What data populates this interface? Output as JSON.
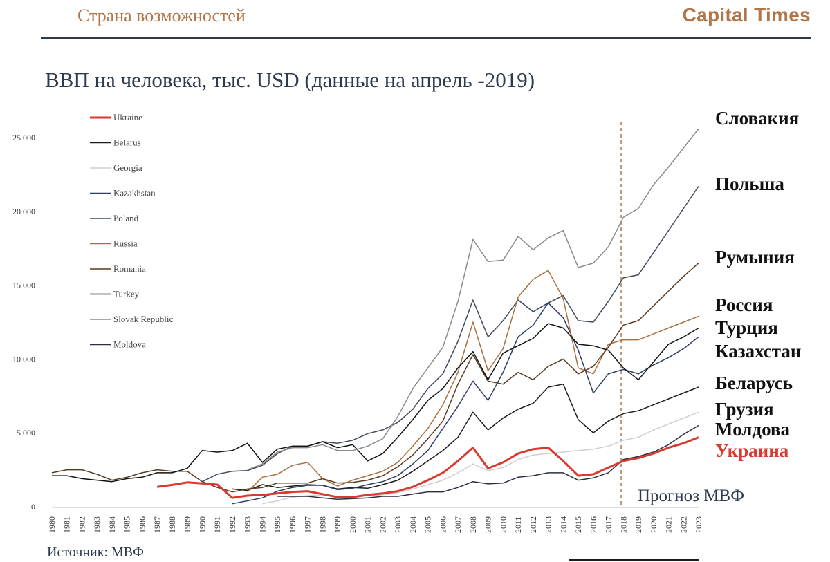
{
  "header": {
    "left": "Страна возможностей",
    "right": "Capital Times"
  },
  "chart_data": {
    "type": "line",
    "title": "ВВП на человека, тыс. USD (данные на апрель -2019)",
    "source": "Источник: МВФ",
    "forecast_label": "Прогноз МВФ",
    "forecast_start": 2018,
    "x": [
      1980,
      1981,
      1982,
      1983,
      1984,
      1985,
      1986,
      1987,
      1988,
      1989,
      1990,
      1991,
      1992,
      1993,
      1994,
      1995,
      1996,
      1997,
      1998,
      1999,
      2000,
      2001,
      2002,
      2003,
      2004,
      2005,
      2006,
      2007,
      2008,
      2009,
      2010,
      2011,
      2012,
      2013,
      2014,
      2015,
      2016,
      2017,
      2018,
      2019,
      2020,
      2021,
      2022,
      2023
    ],
    "ylim": [
      0,
      25000
    ],
    "yticks": [
      0,
      5000,
      10000,
      15000,
      20000,
      25000
    ],
    "ytick_labels": [
      "0",
      "5 000",
      "10 000",
      "15 000",
      "20 000",
      "25 000"
    ],
    "grid": false,
    "legend_position": "top-left",
    "series": [
      {
        "name": "Ukraine",
        "ru_label": "Украина",
        "color": "#d93a2f",
        "width": 3,
        "values": [
          null,
          null,
          null,
          null,
          null,
          null,
          null,
          1350,
          1480,
          1650,
          1580,
          1500,
          600,
          750,
          800,
          900,
          1000,
          1050,
          850,
          650,
          650,
          800,
          900,
          1050,
          1350,
          1800,
          2300,
          3100,
          4000,
          2600,
          3000,
          3600,
          3900,
          4000,
          3100,
          2100,
          2200,
          2650,
          3100,
          3300,
          3600,
          4000,
          4300,
          4700
        ]
      },
      {
        "name": "Belarus",
        "ru_label": "Беларусь",
        "color": "#1b1b1b",
        "width": 1.5,
        "values": [
          null,
          null,
          null,
          null,
          null,
          null,
          null,
          null,
          null,
          null,
          null,
          null,
          1200,
          1100,
          1500,
          1300,
          1400,
          1500,
          1450,
          1200,
          1300,
          1250,
          1500,
          1800,
          2400,
          3100,
          3800,
          4700,
          6400,
          5200,
          6000,
          6600,
          7000,
          8100,
          8300,
          5900,
          5000,
          5800,
          6300,
          6500,
          6900,
          7300,
          7700,
          8100
        ]
      },
      {
        "name": "Georgia",
        "ru_label": "Грузия",
        "color": "#cfcfcf",
        "width": 1.5,
        "values": [
          null,
          null,
          null,
          null,
          null,
          null,
          null,
          null,
          null,
          null,
          null,
          null,
          null,
          null,
          200,
          400,
          650,
          750,
          800,
          650,
          700,
          750,
          800,
          950,
          1200,
          1500,
          1800,
          2300,
          2900,
          2450,
          2650,
          3200,
          3500,
          3600,
          3700,
          3800,
          3900,
          4100,
          4500,
          4700,
          5200,
          5600,
          6000,
          6400
        ]
      },
      {
        "name": "Kazakhstan",
        "ru_label": "Казахстан",
        "color": "#2c3e66",
        "width": 1.5,
        "values": [
          null,
          null,
          null,
          null,
          null,
          null,
          null,
          null,
          null,
          null,
          null,
          null,
          200,
          400,
          600,
          1050,
          1300,
          1450,
          1450,
          1150,
          1250,
          1500,
          1700,
          2100,
          2900,
          3800,
          5300,
          6800,
          8500,
          7200,
          9100,
          11500,
          12300,
          13800,
          12800,
          10600,
          7700,
          9000,
          9300,
          9000,
          9600,
          10100,
          10700,
          11500
        ]
      },
      {
        "name": "Poland",
        "ru_label": "Польша",
        "color": "#3f4a5c",
        "width": 1.5,
        "values": [
          null,
          null,
          null,
          null,
          null,
          null,
          null,
          null,
          null,
          null,
          1700,
          2200,
          2400,
          2450,
          2800,
          3600,
          4100,
          4100,
          4400,
          4300,
          4500,
          4950,
          5200,
          5700,
          6600,
          8000,
          9000,
          11200,
          14000,
          11500,
          12600,
          14000,
          13200,
          13800,
          14300,
          12600,
          12500,
          13900,
          15500,
          15700,
          17200,
          18700,
          20200,
          21700
        ]
      },
      {
        "name": "Russia",
        "ru_label": "Россия",
        "color": "#a8703f",
        "width": 1.5,
        "values": [
          null,
          null,
          null,
          null,
          null,
          null,
          null,
          null,
          null,
          null,
          null,
          null,
          null,
          1000,
          2000,
          2200,
          2800,
          3000,
          1900,
          1400,
          1800,
          2100,
          2400,
          3000,
          4100,
          5300,
          6900,
          9100,
          12500,
          9200,
          10700,
          14200,
          15400,
          16000,
          14100,
          9400,
          9000,
          11000,
          11300,
          11300,
          11700,
          12100,
          12500,
          12900
        ]
      },
      {
        "name": "Romania",
        "ru_label": "Румыния",
        "color": "#5a3a1f",
        "width": 1.5,
        "values": [
          2300,
          2500,
          2500,
          2200,
          1800,
          2000,
          2300,
          2500,
          2400,
          2400,
          1700,
          1300,
          1000,
          1200,
          1300,
          1600,
          1600,
          1600,
          1900,
          1600,
          1650,
          1800,
          2100,
          2700,
          3500,
          4600,
          5800,
          8300,
          10300,
          8500,
          8300,
          9100,
          8600,
          9500,
          10000,
          9000,
          9500,
          10800,
          12300,
          12600,
          13600,
          14600,
          15600,
          16500
        ]
      },
      {
        "name": "Turkey",
        "ru_label": "Турция",
        "color": "#111111",
        "width": 1.5,
        "values": [
          2100,
          2100,
          1900,
          1800,
          1700,
          1900,
          2000,
          2300,
          2300,
          2600,
          3800,
          3700,
          3800,
          4300,
          3000,
          3900,
          4100,
          4100,
          4400,
          4000,
          4200,
          3100,
          3600,
          4700,
          5900,
          7200,
          8000,
          9400,
          10500,
          8600,
          10400,
          10900,
          11400,
          12400,
          12100,
          11000,
          10900,
          10600,
          9400,
          8600,
          9800,
          11000,
          11500,
          12100
        ]
      },
      {
        "name": "Slovak Republic",
        "ru_label": "Словакия",
        "color": "#8a8a8a",
        "width": 1.5,
        "values": [
          null,
          null,
          null,
          null,
          null,
          null,
          null,
          null,
          null,
          null,
          null,
          null,
          null,
          2500,
          2900,
          3700,
          4000,
          4000,
          4200,
          3800,
          3800,
          4100,
          4600,
          6100,
          8000,
          9400,
          10800,
          13900,
          18100,
          16600,
          16700,
          18300,
          17400,
          18200,
          18700,
          16200,
          16500,
          17600,
          19600,
          20200,
          21800,
          23000,
          24300,
          25600
        ]
      },
      {
        "name": "Moldova",
        "ru_label": "Молдова",
        "color": "#2a2f45",
        "width": 1.5,
        "values": [
          null,
          null,
          null,
          null,
          null,
          null,
          null,
          null,
          null,
          null,
          null,
          null,
          null,
          null,
          null,
          700,
          700,
          700,
          600,
          500,
          550,
          600,
          700,
          700,
          850,
          1000,
          1000,
          1300,
          1700,
          1550,
          1600,
          2000,
          2100,
          2300,
          2300,
          1800,
          1950,
          2300,
          3200,
          3400,
          3700,
          4200,
          4900,
          5500
        ]
      }
    ],
    "labels_block": [
      "Словакия",
      "Польша",
      "Румыния",
      "Россия",
      "Турция",
      "Казахстан",
      "Беларусь",
      "Грузия",
      "Молдова",
      "Украина"
    ]
  }
}
